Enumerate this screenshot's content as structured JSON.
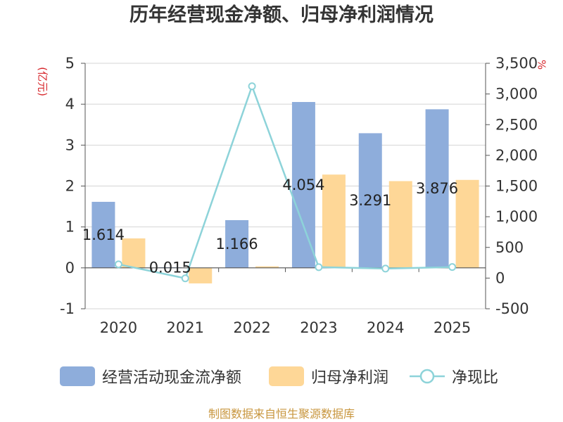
{
  "chart_data": {
    "type": "bar",
    "title": "历年经营现金净额、归母净利润情况",
    "categories": [
      "2020",
      "2021",
      "2022",
      "2023",
      "2024",
      "2025"
    ],
    "series": [
      {
        "name": "经营活动现金流净额",
        "type": "bar",
        "axis": "left",
        "color": "#8eaddb",
        "data_labels": true,
        "values": [
          1.614,
          0.015,
          1.166,
          4.054,
          3.291,
          3.876
        ]
      },
      {
        "name": "归母净利润",
        "type": "bar",
        "axis": "left",
        "color": "#fed797",
        "data_labels": false,
        "values": [
          0.72,
          -0.38,
          0.037,
          2.28,
          2.12,
          2.15
        ]
      },
      {
        "name": "净现比",
        "type": "line",
        "axis": "right",
        "color": "#8dd3d9",
        "data_labels": false,
        "values": [
          224,
          -4,
          3126,
          178,
          155,
          180
        ]
      }
    ],
    "ylabel": "(亿元)",
    "y2label": "%",
    "ylim": [
      -1,
      5
    ],
    "y2lim": [
      -500,
      3500
    ],
    "yticks": [
      "-1",
      "0",
      "1",
      "2",
      "3",
      "4",
      "5"
    ],
    "y2ticks": [
      "-500",
      "0",
      "500",
      "1,000",
      "1,500",
      "2,000",
      "2,500",
      "3,000",
      "3,500"
    ],
    "grid": true,
    "legend": "bottom"
  },
  "footer": "制图数据来自恒生聚源数据库",
  "colors": {
    "title": "#333333",
    "axis_unit": "#d7262b",
    "footer": "#c8963e",
    "gridline": "#d4d4d4",
    "axis": "#555555",
    "text": "#333333"
  }
}
